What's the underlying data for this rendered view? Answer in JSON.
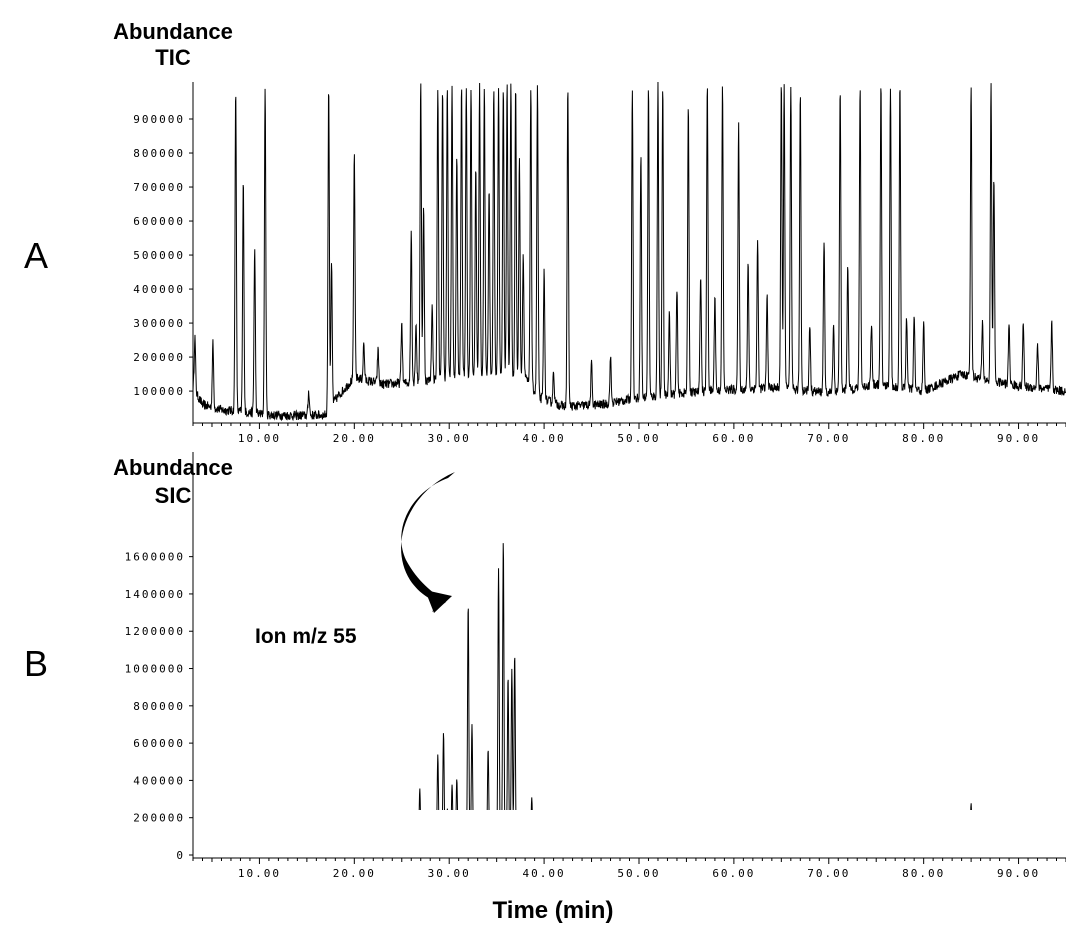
{
  "shared_xlabel": "Time (min)",
  "annotation": {
    "text": "Ion m/z 55"
  },
  "chart_data": [
    {
      "type": "line",
      "panel": "A",
      "title": "TIC",
      "ylabel": "Abundance",
      "xlabel": "Time (min)",
      "xlim": [
        3.0,
        95.0
      ],
      "ylim": [
        15000,
        1000000
      ],
      "x_ticks": [
        10,
        20,
        30,
        40,
        50,
        60,
        70,
        80,
        90
      ],
      "x_tick_labels": [
        "10.00",
        "20.00",
        "30.00",
        "40.00",
        "50.00",
        "60.00",
        "70.00",
        "80.00",
        "90.00"
      ],
      "y_ticks": [
        100000,
        200000,
        300000,
        400000,
        500000,
        600000,
        700000,
        800000,
        900000
      ],
      "y_tick_labels": [
        "100000",
        "200000",
        "300000",
        "400000",
        "500000",
        "600000",
        "700000",
        "800000",
        "900000"
      ],
      "grid": false,
      "series": [
        {
          "baseline": [
            [
              3.0,
              110000
            ],
            [
              4.0,
              60000
            ],
            [
              6.0,
              45000
            ],
            [
              8.0,
              40000
            ],
            [
              11.0,
              30000
            ],
            [
              14.0,
              28000
            ],
            [
              17.0,
              30000
            ],
            [
              18.0,
              75000
            ],
            [
              20.0,
              140000
            ],
            [
              23.0,
              120000
            ],
            [
              26.0,
              125000
            ],
            [
              30.0,
              140000
            ],
            [
              34.0,
              150000
            ],
            [
              38.0,
              140000
            ],
            [
              39.5,
              80000
            ],
            [
              42.0,
              55000
            ],
            [
              46.0,
              60000
            ],
            [
              50.0,
              80000
            ],
            [
              55.0,
              95000
            ],
            [
              60.0,
              105000
            ],
            [
              65.0,
              110000
            ],
            [
              70.0,
              95000
            ],
            [
              75.0,
              120000
            ],
            [
              80.0,
              100000
            ],
            [
              84.0,
              150000
            ],
            [
              87.0,
              130000
            ],
            [
              90.0,
              115000
            ],
            [
              95.0,
              100000
            ]
          ],
          "peaks": [
            [
              3.2,
              260000
            ],
            [
              5.1,
              240000
            ],
            [
              7.5,
              1000000
            ],
            [
              8.3,
              715000
            ],
            [
              9.5,
              520000
            ],
            [
              10.6,
              1000000
            ],
            [
              15.2,
              100000
            ],
            [
              17.3,
              1000000
            ],
            [
              17.6,
              475000
            ],
            [
              20.0,
              800000
            ],
            [
              21.0,
              240000
            ],
            [
              22.5,
              220000
            ],
            [
              25.0,
              300000
            ],
            [
              26.0,
              570000
            ],
            [
              26.5,
              300000
            ],
            [
              27.0,
              1000000
            ],
            [
              27.3,
              650000
            ],
            [
              28.2,
              350000
            ],
            [
              28.8,
              1000000
            ],
            [
              29.3,
              1000000
            ],
            [
              29.8,
              1000000
            ],
            [
              30.3,
              1000000
            ],
            [
              30.8,
              800000
            ],
            [
              31.3,
              1000000
            ],
            [
              31.8,
              1000000
            ],
            [
              32.3,
              1000000
            ],
            [
              32.8,
              750000
            ],
            [
              33.2,
              1000000
            ],
            [
              33.7,
              1000000
            ],
            [
              34.2,
              700000
            ],
            [
              34.7,
              1000000
            ],
            [
              35.2,
              1000000
            ],
            [
              35.7,
              1000000
            ],
            [
              36.1,
              1000000
            ],
            [
              36.5,
              1000000
            ],
            [
              37.0,
              1000000
            ],
            [
              37.4,
              780000
            ],
            [
              37.8,
              500000
            ],
            [
              38.6,
              1000000
            ],
            [
              39.3,
              1000000
            ],
            [
              40.0,
              450000
            ],
            [
              41.0,
              160000
            ],
            [
              42.5,
              1000000
            ],
            [
              45.0,
              180000
            ],
            [
              47.0,
              200000
            ],
            [
              49.3,
              1000000
            ],
            [
              50.2,
              800000
            ],
            [
              51.0,
              1000000
            ],
            [
              52.0,
              1000000
            ],
            [
              52.5,
              1000000
            ],
            [
              53.2,
              330000
            ],
            [
              54.0,
              400000
            ],
            [
              55.2,
              950000
            ],
            [
              56.5,
              450000
            ],
            [
              57.2,
              1000000
            ],
            [
              58.0,
              380000
            ],
            [
              58.8,
              1000000
            ],
            [
              60.5,
              880000
            ],
            [
              61.5,
              480000
            ],
            [
              62.5,
              540000
            ],
            [
              63.5,
              380000
            ],
            [
              65.0,
              1000000
            ],
            [
              65.3,
              1000000
            ],
            [
              66.0,
              1000000
            ],
            [
              67.0,
              980000
            ],
            [
              68.0,
              300000
            ],
            [
              69.5,
              550000
            ],
            [
              70.5,
              300000
            ],
            [
              71.2,
              1000000
            ],
            [
              72.0,
              480000
            ],
            [
              73.3,
              1000000
            ],
            [
              74.5,
              300000
            ],
            [
              75.5,
              1000000
            ],
            [
              76.5,
              1000000
            ],
            [
              77.5,
              1000000
            ],
            [
              78.2,
              320000
            ],
            [
              79.0,
              320000
            ],
            [
              80.0,
              300000
            ],
            [
              85.0,
              1000000
            ],
            [
              86.2,
              300000
            ],
            [
              87.1,
              1000000
            ],
            [
              87.4,
              735000
            ],
            [
              89.0,
              300000
            ],
            [
              90.5,
              300000
            ],
            [
              92.0,
              240000
            ],
            [
              93.5,
              300000
            ]
          ]
        }
      ]
    },
    {
      "type": "line",
      "panel": "B",
      "title": "SIC",
      "ylabel": "Abundance",
      "xlabel": "Time (min)",
      "xlim": [
        3.0,
        95.0
      ],
      "ylim": [
        0,
        1700000
      ],
      "x_ticks": [
        10,
        20,
        30,
        40,
        50,
        60,
        70,
        80,
        90
      ],
      "x_tick_labels": [
        "10.00",
        "20.00",
        "30.00",
        "40.00",
        "50.00",
        "60.00",
        "70.00",
        "80.00",
        "90.00"
      ],
      "y_ticks": [
        0,
        200000,
        400000,
        600000,
        800000,
        1000000,
        1200000,
        1400000,
        1600000
      ],
      "y_tick_labels": [
        "0",
        "200000",
        "400000",
        "600000",
        "800000",
        "1000000",
        "1200000",
        "1400000",
        "1600000"
      ],
      "grid": false,
      "series": [
        {
          "baseline": [
            [
              3.0,
              0
            ],
            [
              18.0,
              5000
            ],
            [
              25.0,
              15000
            ],
            [
              38.0,
              15000
            ],
            [
              42.0,
              3000
            ],
            [
              95.0,
              0
            ]
          ],
          "peaks": [
            [
              8.3,
              50000
            ],
            [
              17.5,
              20000
            ],
            [
              20.0,
              50000
            ],
            [
              21.0,
              30000
            ],
            [
              22.0,
              25000
            ],
            [
              25.0,
              30000
            ],
            [
              26.3,
              50000
            ],
            [
              26.9,
              355000
            ],
            [
              27.3,
              80000
            ],
            [
              28.8,
              540000
            ],
            [
              29.4,
              660000
            ],
            [
              29.8,
              250000
            ],
            [
              30.3,
              380000
            ],
            [
              30.8,
              410000
            ],
            [
              31.3,
              200000
            ],
            [
              32.0,
              1350000
            ],
            [
              32.4,
              700000
            ],
            [
              33.3,
              150000
            ],
            [
              34.1,
              570000
            ],
            [
              35.2,
              1540000
            ],
            [
              35.7,
              1690000
            ],
            [
              36.2,
              960000
            ],
            [
              36.6,
              1000000
            ],
            [
              36.9,
              1080000
            ],
            [
              38.7,
              310000
            ],
            [
              39.2,
              100000
            ],
            [
              50.3,
              120000
            ],
            [
              51.8,
              140000
            ],
            [
              54.5,
              40000
            ],
            [
              57.2,
              75000
            ],
            [
              61.0,
              20000
            ],
            [
              65.5,
              50000
            ],
            [
              67.0,
              40000
            ],
            [
              72.5,
              30000
            ],
            [
              77.5,
              70000
            ],
            [
              85.0,
              280000
            ],
            [
              86.8,
              60000
            ]
          ]
        }
      ]
    }
  ]
}
